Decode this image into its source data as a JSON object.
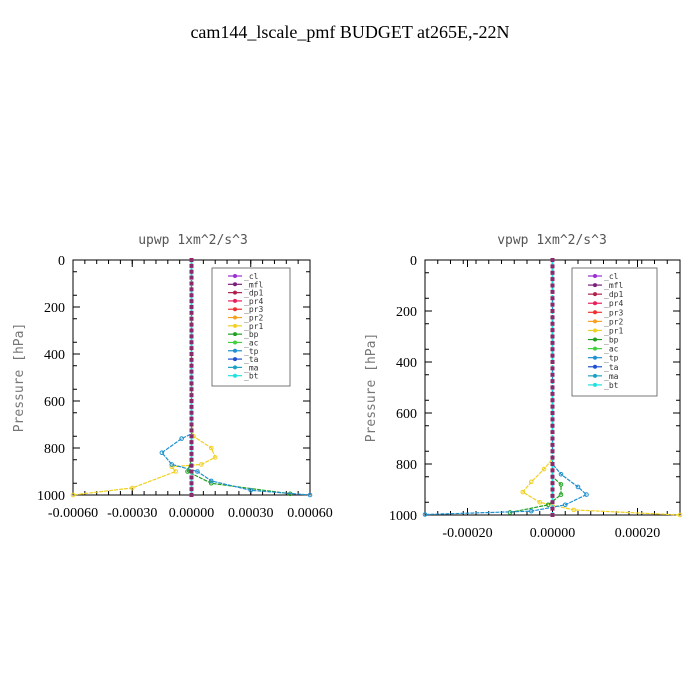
{
  "page": {
    "title": "cam144_lscale_pmf  BUDGET at265E,-22N"
  },
  "chart_data": [
    {
      "type": "line",
      "title": "upwp  1xm^2/s^3",
      "ylabel": "Pressure [hPa]",
      "xlim": [
        -0.0006,
        0.0006
      ],
      "ylim": [
        1000,
        0
      ],
      "xticks": [
        -0.0006,
        -0.0003,
        0.0,
        0.0003,
        0.0006
      ],
      "xtick_labels": [
        "-0.00060",
        "-0.00030",
        "0.00000",
        "0.00030",
        "0.00060"
      ],
      "yticks": [
        0,
        200,
        400,
        600,
        800,
        1000
      ],
      "ytick_labels": [
        "0",
        "200",
        "400",
        "600",
        "800",
        "1000"
      ],
      "grid": false,
      "legend_position": "top-right",
      "series": [
        {
          "name": "_cl",
          "color": "#9b30d0",
          "values": [
            [
              0,
              0
            ],
            [
              0,
              1000
            ]
          ]
        },
        {
          "name": "_mfl",
          "color": "#7a1f7a",
          "values": [
            [
              0,
              0
            ],
            [
              0,
              1000
            ]
          ]
        },
        {
          "name": "_dp1",
          "color": "#b0204a",
          "values": [
            [
              0,
              0
            ],
            [
              0,
              1000
            ]
          ]
        },
        {
          "name": "_pr4",
          "color": "#e8205a",
          "values": [
            [
              0,
              0
            ],
            [
              0,
              1000
            ]
          ]
        },
        {
          "name": "_pr3",
          "color": "#f03030",
          "values": [
            [
              0,
              0
            ],
            [
              0,
              1000
            ]
          ]
        },
        {
          "name": "_pr2",
          "color": "#f5a020",
          "values": [
            [
              0,
              0
            ],
            [
              0,
              1000
            ]
          ]
        },
        {
          "name": "_pr1",
          "color": "#f0d020",
          "values": [
            [
              0,
              0
            ],
            [
              0,
              700
            ],
            [
              1e-05,
              750
            ],
            [
              0.0001,
              800
            ],
            [
              0.00012,
              840
            ],
            [
              5e-05,
              870
            ],
            [
              -0.0001,
              880
            ],
            [
              -8e-05,
              900
            ],
            [
              -0.0003,
              970
            ],
            [
              -0.0006,
              1000
            ]
          ]
        },
        {
          "name": "_bp",
          "color": "#20a020",
          "values": [
            [
              0,
              0
            ],
            [
              0,
              850
            ],
            [
              -2e-05,
              900
            ],
            [
              0.0001,
              950
            ],
            [
              0.0005,
              995
            ]
          ]
        },
        {
          "name": "_ac",
          "color": "#40d040",
          "values": [
            [
              0,
              0
            ],
            [
              0,
              1000
            ]
          ]
        },
        {
          "name": "_tp",
          "color": "#2090d0",
          "values": [
            [
              0,
              0
            ],
            [
              0,
              740
            ],
            [
              -5e-05,
              760
            ],
            [
              -0.00015,
              820
            ],
            [
              -0.0001,
              870
            ],
            [
              3e-05,
              900
            ],
            [
              0.0001,
              940
            ],
            [
              0.0003,
              980
            ],
            [
              0.0006,
              1000
            ]
          ]
        },
        {
          "name": "_ta",
          "color": "#2050d0",
          "values": [
            [
              0,
              0
            ],
            [
              0,
              1000
            ]
          ]
        },
        {
          "name": "_ma",
          "color": "#20a0c0",
          "values": [
            [
              0,
              0
            ],
            [
              0,
              1000
            ]
          ]
        },
        {
          "name": "_bt",
          "color": "#20e0e0",
          "values": [
            [
              0,
              0
            ],
            [
              0,
              1000
            ]
          ]
        }
      ]
    },
    {
      "type": "line",
      "title": "vpwp  1xm^2/s^3",
      "ylabel": "Pressure [hPa]",
      "xlim": [
        -0.0003,
        0.0003
      ],
      "ylim": [
        1000,
        0
      ],
      "xticks": [
        -0.0002,
        0.0,
        0.0002
      ],
      "xtick_labels": [
        "-0.00020",
        "0.00000",
        "0.00020"
      ],
      "yticks": [
        0,
        200,
        400,
        600,
        800,
        1000
      ],
      "ytick_labels": [
        "0",
        "200",
        "400",
        "600",
        "800",
        "1000"
      ],
      "grid": false,
      "legend_position": "top-right",
      "series": [
        {
          "name": "_cl",
          "color": "#9b30d0",
          "values": [
            [
              0,
              0
            ],
            [
              0,
              1000
            ]
          ]
        },
        {
          "name": "_mfl",
          "color": "#7a1f7a",
          "values": [
            [
              0,
              0
            ],
            [
              0,
              1000
            ]
          ]
        },
        {
          "name": "_dp1",
          "color": "#b0204a",
          "values": [
            [
              0,
              0
            ],
            [
              0,
              1000
            ]
          ]
        },
        {
          "name": "_pr4",
          "color": "#e8205a",
          "values": [
            [
              0,
              0
            ],
            [
              0,
              1000
            ]
          ]
        },
        {
          "name": "_pr3",
          "color": "#f03030",
          "values": [
            [
              0,
              0
            ],
            [
              0,
              1000
            ]
          ]
        },
        {
          "name": "_pr2",
          "color": "#f5a020",
          "values": [
            [
              0,
              0
            ],
            [
              0,
              1000
            ]
          ]
        },
        {
          "name": "_pr1",
          "color": "#f0d020",
          "values": [
            [
              0,
              0
            ],
            [
              0,
              780
            ],
            [
              -2e-05,
              820
            ],
            [
              -5e-05,
              870
            ],
            [
              -7e-05,
              910
            ],
            [
              -3e-05,
              950
            ],
            [
              5e-05,
              980
            ],
            [
              0.0003,
              1000
            ]
          ]
        },
        {
          "name": "_bp",
          "color": "#20a020",
          "values": [
            [
              0,
              0
            ],
            [
              0,
              850
            ],
            [
              2e-05,
              880
            ],
            [
              2e-05,
              920
            ],
            [
              -1e-05,
              960
            ],
            [
              -0.0001,
              990
            ]
          ]
        },
        {
          "name": "_ac",
          "color": "#40d040",
          "values": [
            [
              0,
              0
            ],
            [
              0,
              1000
            ]
          ]
        },
        {
          "name": "_tp",
          "color": "#2090d0",
          "values": [
            [
              0,
              0
            ],
            [
              0,
              800
            ],
            [
              2e-05,
              840
            ],
            [
              6e-05,
              890
            ],
            [
              8e-05,
              920
            ],
            [
              3e-05,
              960
            ],
            [
              -5e-05,
              985
            ],
            [
              -0.0003,
              998
            ]
          ]
        },
        {
          "name": "_ta",
          "color": "#2050d0",
          "values": [
            [
              0,
              0
            ],
            [
              0,
              1000
            ]
          ]
        },
        {
          "name": "_ma",
          "color": "#20a0c0",
          "values": [
            [
              0,
              0
            ],
            [
              0,
              1000
            ]
          ]
        },
        {
          "name": "_bt",
          "color": "#20e0e0",
          "values": [
            [
              0,
              0
            ],
            [
              0,
              1000
            ]
          ]
        }
      ]
    }
  ]
}
